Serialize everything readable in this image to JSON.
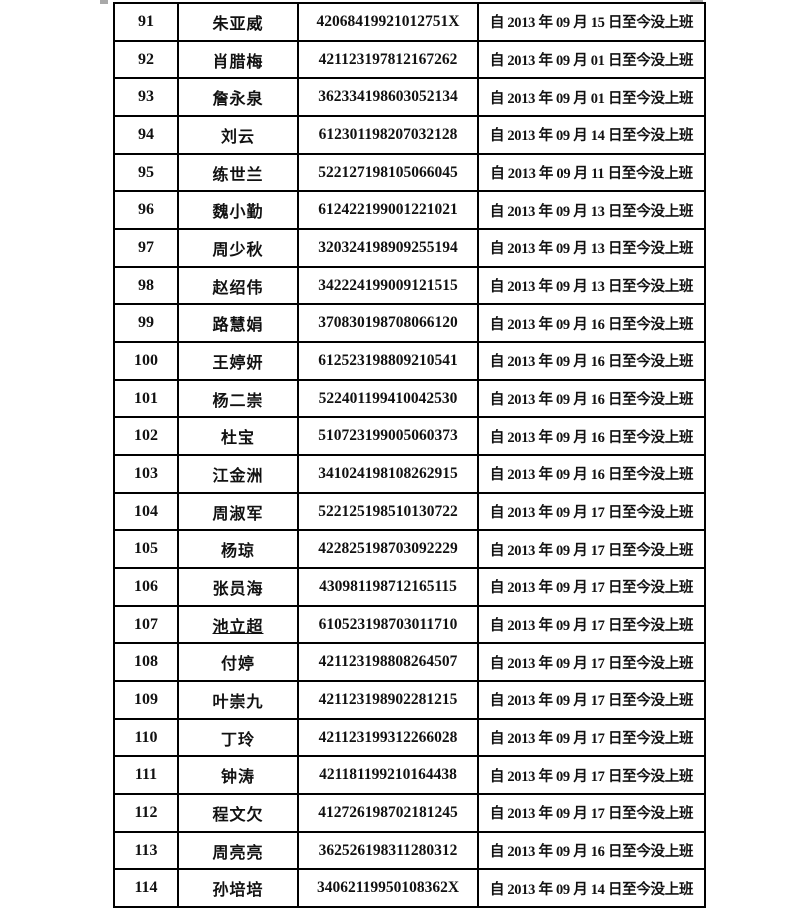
{
  "colors": {
    "background": "#ffffff",
    "border": "#000000",
    "text": "#111111",
    "corner_artifact": "#a9a9a9"
  },
  "table": {
    "rows": [
      {
        "no": "91",
        "name": "朱亚威",
        "id": "42068419921012751X",
        "status": "自 2013 年 09 月 15 日至今没上班",
        "underline": false
      },
      {
        "no": "92",
        "name": "肖腊梅",
        "id": "421123197812167262",
        "status": "自 2013 年 09 月 01 日至今没上班",
        "underline": false
      },
      {
        "no": "93",
        "name": "詹永泉",
        "id": "362334198603052134",
        "status": "自 2013 年 09 月 01 日至今没上班",
        "underline": false
      },
      {
        "no": "94",
        "name": "刘云",
        "id": "612301198207032128",
        "status": "自 2013 年 09 月 14 日至今没上班",
        "underline": false
      },
      {
        "no": "95",
        "name": "练世兰",
        "id": "522127198105066045",
        "status": "自 2013 年 09 月 11 日至今没上班",
        "underline": false
      },
      {
        "no": "96",
        "name": "魏小勤",
        "id": "612422199001221021",
        "status": "自 2013 年 09 月 13 日至今没上班",
        "underline": false
      },
      {
        "no": "97",
        "name": "周少秋",
        "id": "320324198909255194",
        "status": "自 2013 年 09 月 13 日至今没上班",
        "underline": false
      },
      {
        "no": "98",
        "name": "赵绍伟",
        "id": "342224199009121515",
        "status": "自 2013 年 09 月 13 日至今没上班",
        "underline": false
      },
      {
        "no": "99",
        "name": "路慧娟",
        "id": "370830198708066120",
        "status": "自 2013 年 09 月 16 日至今没上班",
        "underline": false
      },
      {
        "no": "100",
        "name": "王婷妍",
        "id": "612523198809210541",
        "status": "自 2013 年 09 月 16 日至今没上班",
        "underline": false
      },
      {
        "no": "101",
        "name": "杨二崇",
        "id": "522401199410042530",
        "status": "自 2013 年 09 月 16 日至今没上班",
        "underline": false
      },
      {
        "no": "102",
        "name": "杜宝",
        "id": "510723199005060373",
        "status": "自 2013 年 09 月 16 日至今没上班",
        "underline": false
      },
      {
        "no": "103",
        "name": "江金洲",
        "id": "341024198108262915",
        "status": "自 2013 年 09 月 16 日至今没上班",
        "underline": false
      },
      {
        "no": "104",
        "name": "周淑军",
        "id": "522125198510130722",
        "status": "自 2013 年 09 月 17 日至今没上班",
        "underline": false
      },
      {
        "no": "105",
        "name": "杨琼",
        "id": "422825198703092229",
        "status": "自 2013 年 09 月 17 日至今没上班",
        "underline": false
      },
      {
        "no": "106",
        "name": "张员海",
        "id": "430981198712165115",
        "status": "自 2013 年 09 月 17 日至今没上班",
        "underline": false
      },
      {
        "no": "107",
        "name": "池立超",
        "id": "610523198703011710",
        "status": "自 2013 年 09 月 17 日至今没上班",
        "underline": true
      },
      {
        "no": "108",
        "name": "付婷",
        "id": "421123198808264507",
        "status": "自 2013 年 09 月 17 日至今没上班",
        "underline": false
      },
      {
        "no": "109",
        "name": "叶崇九",
        "id": "421123198902281215",
        "status": "自 2013 年 09 月 17 日至今没上班",
        "underline": false
      },
      {
        "no": "110",
        "name": "丁玲",
        "id": "421123199312266028",
        "status": "自 2013 年 09 月 17 日至今没上班",
        "underline": false
      },
      {
        "no": "111",
        "name": "钟涛",
        "id": "421181199210164438",
        "status": "自 2013 年 09 月 17 日至今没上班",
        "underline": false
      },
      {
        "no": "112",
        "name": "程文欠",
        "id": "412726198702181245",
        "status": "自 2013 年 09 月 17 日至今没上班",
        "underline": false
      },
      {
        "no": "113",
        "name": "周亮亮",
        "id": "362526198311280312",
        "status": "自 2013 年 09 月 16 日至今没上班",
        "underline": false
      },
      {
        "no": "114",
        "name": "孙培培",
        "id": "34062119950108362X",
        "status": "自 2013 年 09 月 14 日至今没上班",
        "underline": false
      }
    ]
  }
}
